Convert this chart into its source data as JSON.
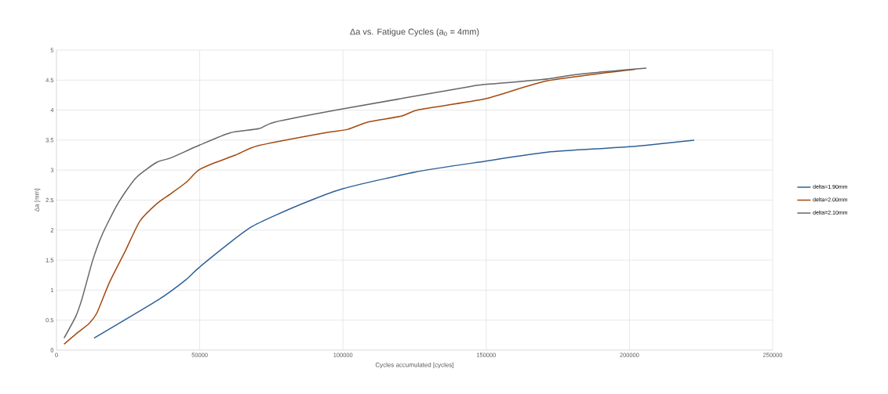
{
  "chart_data": {
    "type": "line",
    "title": "Δa vs. Fatigue Cycles (a$_{0}$ = 4mm)",
    "xlabel": "Cycles accumulated [cycles]",
    "ylabel": "Δa [mm]",
    "xlim": [
      0,
      250000
    ],
    "ylim": [
      0,
      5
    ],
    "xticks": [
      0,
      50000,
      100000,
      150000,
      200000,
      250000
    ],
    "yticks": [
      0,
      0.5,
      1,
      1.5,
      2,
      2.5,
      3,
      3.5,
      4,
      4.5,
      5
    ],
    "grid": true,
    "legend": "right",
    "marker": "none",
    "line_style": "solid",
    "series": [
      {
        "name": "delta=1.90mm",
        "color": "#2e6196",
        "x": [
          13100,
          35900,
          45100,
          49600,
          60500,
          67900,
          76100,
          87900,
          99900,
          125400,
          149800,
          171400,
          199900,
          222600
        ],
        "values": [
          0.2,
          0.85,
          1.17,
          1.37,
          1.79,
          2.05,
          2.24,
          2.48,
          2.69,
          2.97,
          3.15,
          3.3,
          3.39,
          3.5
        ]
      },
      {
        "name": "delta=2.00mm",
        "color": "#a5490f",
        "x": [
          2650,
          6800,
          11300,
          14000,
          18600,
          24100,
          29100,
          35000,
          39700,
          45100,
          49600,
          55100,
          62400,
          70600,
          93400,
          101600,
          108600,
          120400,
          126700,
          149800,
          171400,
          202000
        ],
        "values": [
          0.1,
          0.27,
          0.44,
          0.61,
          1.14,
          1.66,
          2.15,
          2.44,
          2.6,
          2.79,
          3.0,
          3.12,
          3.25,
          3.41,
          3.62,
          3.68,
          3.8,
          3.9,
          4.01,
          4.19,
          4.49,
          4.68
        ]
      },
      {
        "name": "delta=2.10mm",
        "color": "#666666",
        "x": [
          2650,
          6800,
          9000,
          12600,
          15900,
          21400,
          27700,
          35000,
          39700,
          49600,
          60500,
          70600,
          76100,
          99900,
          144000,
          147900,
          169500,
          182400,
          205900
        ],
        "values": [
          0.2,
          0.57,
          0.87,
          1.49,
          1.92,
          2.44,
          2.87,
          3.13,
          3.2,
          3.41,
          3.62,
          3.69,
          3.8,
          4.02,
          4.39,
          4.42,
          4.51,
          4.6,
          4.7
        ]
      }
    ]
  }
}
